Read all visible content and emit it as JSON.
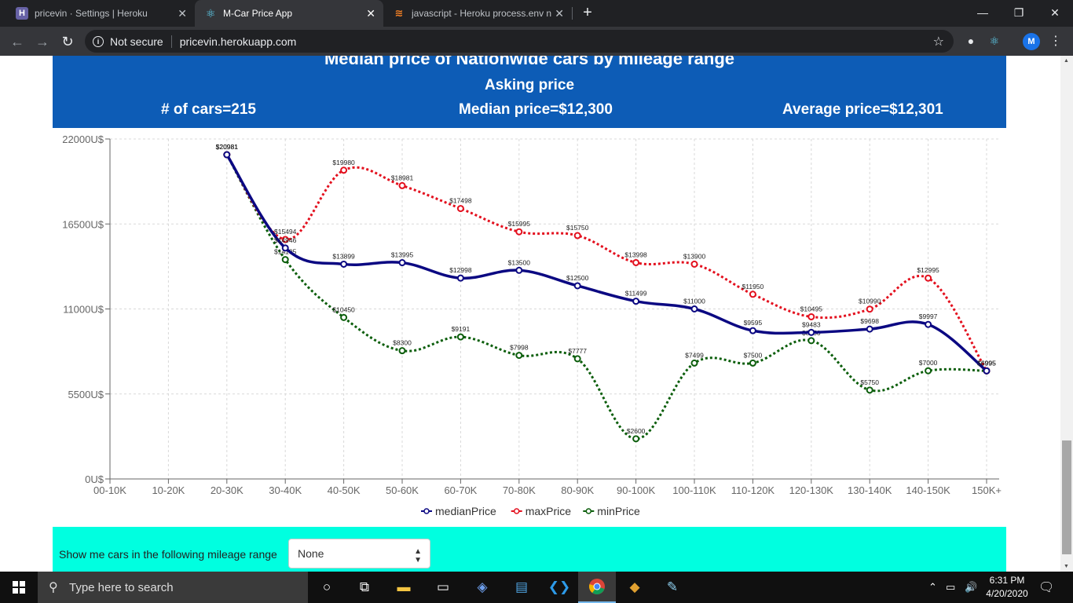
{
  "browser": {
    "tabs": [
      {
        "title": "pricevin · Settings | Heroku",
        "icon": "heroku-icon",
        "active": false
      },
      {
        "title": "M-Car Price App",
        "icon": "react-icon",
        "active": true
      },
      {
        "title": "javascript - Heroku process.env n",
        "icon": "stackoverflow-icon",
        "active": false
      }
    ],
    "security": "Not secure",
    "url": "pricevin.herokuapp.com",
    "profile_initial": "M"
  },
  "banner": {
    "title": "Median price of Nationwide cars by mileage range",
    "subtitle": "Asking price",
    "count": "# of cars=215",
    "median": "Median price=$12,300",
    "average": "Average price=$12,301"
  },
  "chart_data": {
    "type": "line",
    "title": "Median price of Nationwide cars by mileage range",
    "categories": [
      "00-10K",
      "10-20K",
      "20-30K",
      "30-40K",
      "40-50K",
      "50-60K",
      "60-70K",
      "70-80K",
      "80-90K",
      "90-100K",
      "100-110K",
      "110-120K",
      "120-130K",
      "130-140K",
      "140-150K",
      "150K+"
    ],
    "yticks": [
      "0U$",
      "5500U$",
      "11000U$",
      "16500U$",
      "22000U$"
    ],
    "ylim": [
      0,
      22000
    ],
    "series": [
      {
        "name": "medianPrice",
        "color": "#0b0882",
        "style": "solid",
        "values": [
          null,
          null,
          20981,
          14946,
          13899,
          13995,
          12998,
          13500,
          12500,
          11499,
          11000,
          9595,
          9483,
          9698,
          9997,
          6995
        ],
        "labels": [
          null,
          null,
          "$20981",
          "$14946",
          "$13899",
          "$13995",
          "$12998",
          "$13500",
          "$12500",
          "$11499",
          "$11000",
          "$9595",
          "$9483",
          "$9698",
          "$9997",
          "$6995"
        ]
      },
      {
        "name": "maxPrice",
        "color": "#e3101e",
        "style": "dotted",
        "values": [
          null,
          null,
          20981,
          15494,
          19980,
          18981,
          17498,
          15995,
          15750,
          13998,
          13900,
          11950,
          10495,
          10990,
          12995,
          6995
        ],
        "labels": [
          null,
          null,
          "$20981",
          "$15494",
          "$19980",
          "$18981",
          "$17498",
          "$15995",
          "$15750",
          "$13998",
          "$13900",
          "$11950",
          "$10495",
          "$10990",
          "$12995",
          "$6995"
        ]
      },
      {
        "name": "minPrice",
        "color": "#0c5e0c",
        "style": "dotted",
        "values": [
          null,
          null,
          20981,
          14195,
          10450,
          8300,
          9191,
          7998,
          7777,
          2600,
          7499,
          7500,
          8950,
          5750,
          7000,
          6995
        ],
        "labels": [
          null,
          null,
          "$20981",
          "$14195",
          "$10450",
          "$8300",
          "$9191",
          "$7998",
          "$7777",
          "$2600",
          "$7499",
          "$7500",
          "$8950",
          "$5750",
          "$7000",
          "$6995"
        ]
      }
    ],
    "legend_position": "bottom-center"
  },
  "filter": {
    "label": "Show me cars in the following mileage range",
    "selected": "None"
  },
  "taskbar": {
    "search_placeholder": "Type here to search",
    "time": "6:31 PM",
    "date": "4/20/2020"
  }
}
